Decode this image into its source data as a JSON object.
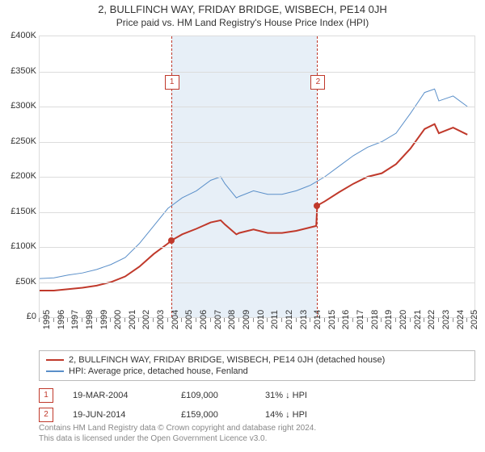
{
  "title": "2, BULLFINCH WAY, FRIDAY BRIDGE, WISBECH, PE14 0JH",
  "subtitle": "Price paid vs. HM Land Registry's House Price Index (HPI)",
  "chart": {
    "type": "line",
    "x_min": 1995,
    "x_max": 2025.5,
    "y_min": 0,
    "y_max": 400000,
    "y_ticks": [
      0,
      50000,
      100000,
      150000,
      200000,
      250000,
      300000,
      350000,
      400000
    ],
    "y_tick_labels": [
      "£0",
      "£50K",
      "£100K",
      "£150K",
      "£200K",
      "£250K",
      "£300K",
      "£350K",
      "£400K"
    ],
    "x_ticks": [
      1995,
      1996,
      1997,
      1998,
      1999,
      2000,
      2001,
      2002,
      2003,
      2004,
      2005,
      2006,
      2007,
      2008,
      2009,
      2010,
      2011,
      2012,
      2013,
      2014,
      2015,
      2016,
      2017,
      2018,
      2019,
      2020,
      2021,
      2022,
      2023,
      2024,
      2025
    ],
    "grid_color": "#dcdcdc",
    "background_color": "#ffffff",
    "shade_color": "#e3ecf6",
    "shade_from": 2004.22,
    "shade_to": 2014.47,
    "series": [
      {
        "name": "property",
        "color": "#c0392b",
        "width": 2,
        "label": "2, BULLFINCH WAY, FRIDAY BRIDGE, WISBECH, PE14 0JH (detached house)",
        "points": [
          [
            1995,
            38000
          ],
          [
            1996,
            38000
          ],
          [
            1997,
            40000
          ],
          [
            1998,
            42000
          ],
          [
            1999,
            45000
          ],
          [
            2000,
            50000
          ],
          [
            2001,
            58000
          ],
          [
            2002,
            72000
          ],
          [
            2003,
            90000
          ],
          [
            2004,
            105000
          ],
          [
            2004.22,
            109000
          ],
          [
            2005,
            118000
          ],
          [
            2006,
            126000
          ],
          [
            2007,
            135000
          ],
          [
            2007.7,
            138000
          ],
          [
            2008,
            132000
          ],
          [
            2008.8,
            118000
          ],
          [
            2009,
            120000
          ],
          [
            2010,
            125000
          ],
          [
            2011,
            120000
          ],
          [
            2012,
            120000
          ],
          [
            2013,
            123000
          ],
          [
            2014,
            128000
          ],
          [
            2014.4,
            130000
          ],
          [
            2014.47,
            159000
          ],
          [
            2015,
            165000
          ],
          [
            2016,
            178000
          ],
          [
            2017,
            190000
          ],
          [
            2018,
            200000
          ],
          [
            2019,
            205000
          ],
          [
            2020,
            218000
          ],
          [
            2021,
            240000
          ],
          [
            2022,
            268000
          ],
          [
            2022.7,
            275000
          ],
          [
            2023,
            262000
          ],
          [
            2024,
            270000
          ],
          [
            2025,
            260000
          ]
        ]
      },
      {
        "name": "hpi",
        "color": "#5a8fc9",
        "width": 1,
        "label": "HPI: Average price, detached house, Fenland",
        "points": [
          [
            1995,
            55000
          ],
          [
            1996,
            56000
          ],
          [
            1997,
            60000
          ],
          [
            1998,
            63000
          ],
          [
            1999,
            68000
          ],
          [
            2000,
            75000
          ],
          [
            2001,
            85000
          ],
          [
            2002,
            105000
          ],
          [
            2003,
            130000
          ],
          [
            2004,
            155000
          ],
          [
            2005,
            170000
          ],
          [
            2006,
            180000
          ],
          [
            2007,
            195000
          ],
          [
            2007.7,
            200000
          ],
          [
            2008,
            190000
          ],
          [
            2008.8,
            170000
          ],
          [
            2009,
            172000
          ],
          [
            2010,
            180000
          ],
          [
            2011,
            175000
          ],
          [
            2012,
            175000
          ],
          [
            2013,
            180000
          ],
          [
            2014,
            188000
          ],
          [
            2015,
            200000
          ],
          [
            2016,
            215000
          ],
          [
            2017,
            230000
          ],
          [
            2018,
            242000
          ],
          [
            2019,
            250000
          ],
          [
            2020,
            262000
          ],
          [
            2021,
            290000
          ],
          [
            2022,
            320000
          ],
          [
            2022.7,
            325000
          ],
          [
            2023,
            308000
          ],
          [
            2024,
            315000
          ],
          [
            2025,
            300000
          ]
        ]
      }
    ],
    "sale_markers": [
      {
        "n": 1,
        "x": 2004.22,
        "y": 109000,
        "box_y": 80000
      },
      {
        "n": 2,
        "x": 2014.47,
        "y": 159000,
        "box_y": 80000
      }
    ]
  },
  "legend": {
    "border_color": "#bbb",
    "items": [
      {
        "color": "#c0392b",
        "label": "2, BULLFINCH WAY, FRIDAY BRIDGE, WISBECH, PE14 0JH (detached house)"
      },
      {
        "color": "#5a8fc9",
        "label": "HPI: Average price, detached house, Fenland"
      }
    ]
  },
  "sales": [
    {
      "n": "1",
      "date": "19-MAR-2004",
      "price": "£109,000",
      "delta": "31% ↓ HPI"
    },
    {
      "n": "2",
      "date": "19-JUN-2014",
      "price": "£159,000",
      "delta": "14% ↓ HPI"
    }
  ],
  "footer": {
    "line1": "Contains HM Land Registry data © Crown copyright and database right 2024.",
    "line2": "This data is licensed under the Open Government Licence v3.0."
  }
}
